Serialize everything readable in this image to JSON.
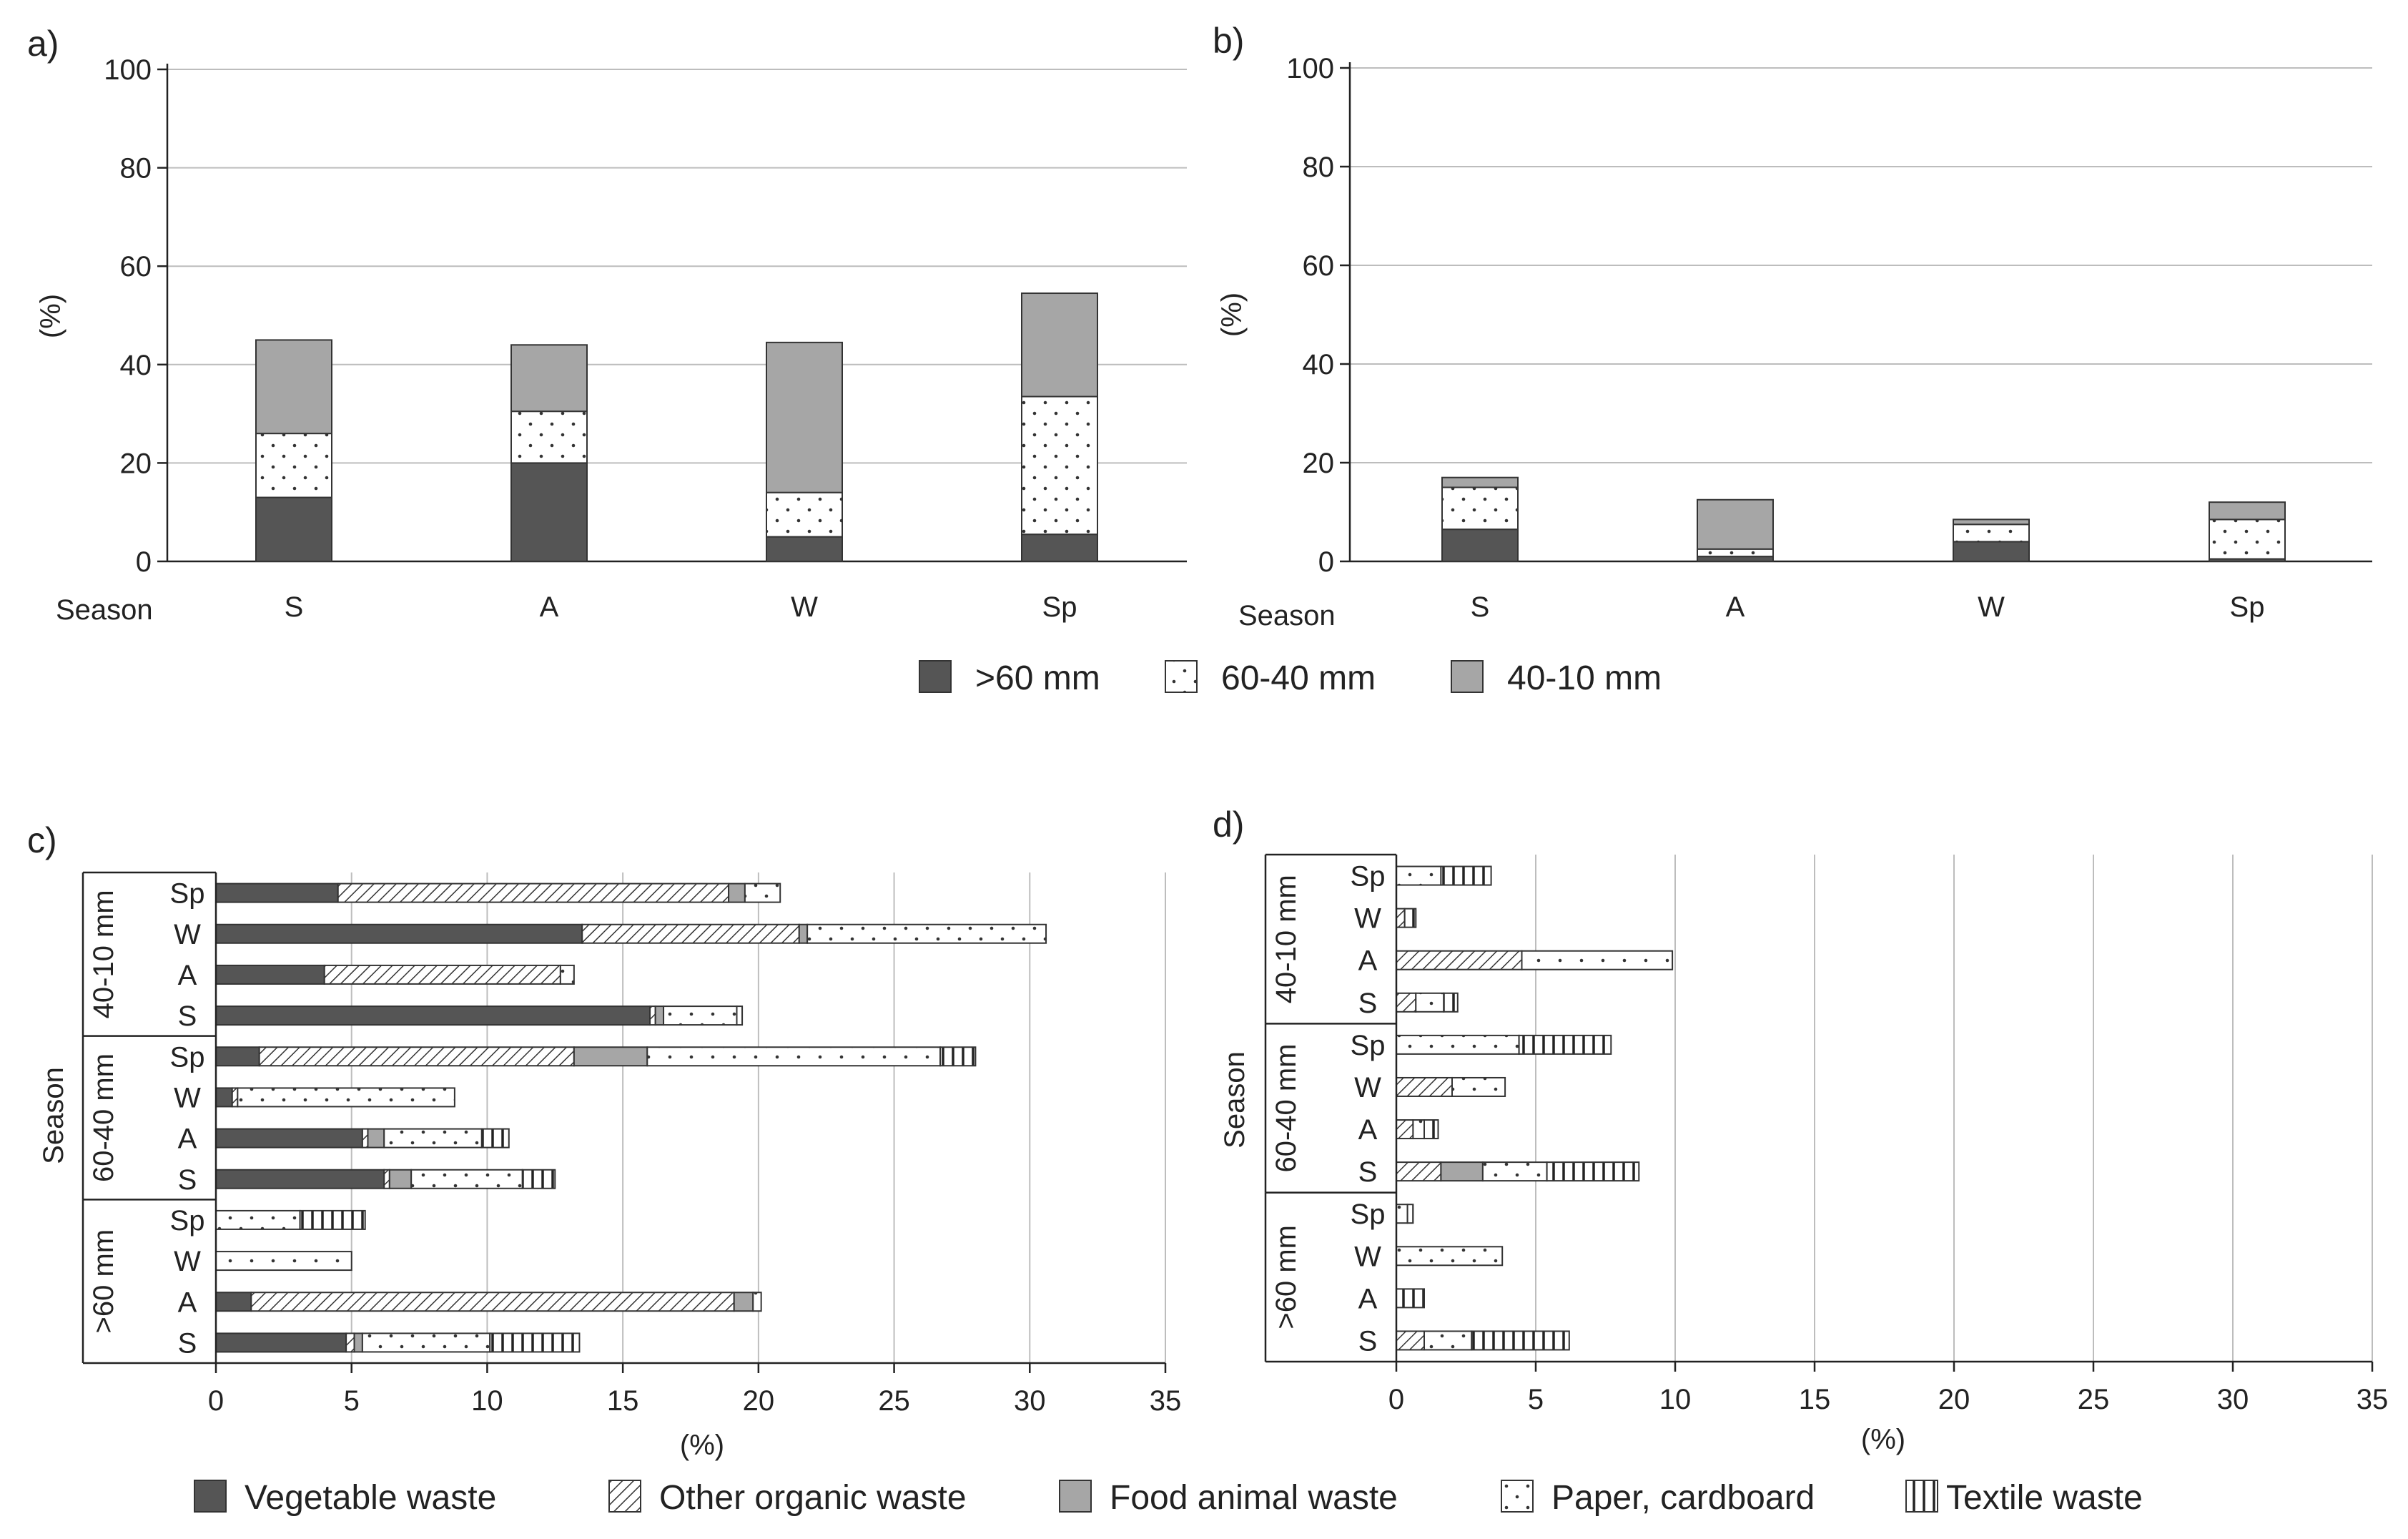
{
  "colors": {
    "vegetable": "#555555",
    "food_animal": "#a6a6a6",
    "size_gt60": "#555555",
    "size_40_10": "#a6a6a6",
    "grid": "#bdbdbd",
    "axis": "#222222"
  },
  "legend_top": [
    {
      "label": ">60 mm",
      "key": "size_gt60"
    },
    {
      "label": "60-40 mm",
      "key": "size_60_40"
    },
    {
      "label": "40-10 mm",
      "key": "size_40_10"
    }
  ],
  "legend_bottom": [
    {
      "label": "Vegetable waste",
      "key": "vegetable"
    },
    {
      "label": "Other organic waste",
      "key": "other_organic"
    },
    {
      "label": "Food animal waste",
      "key": "food_animal"
    },
    {
      "label": "Paper, cardboard",
      "key": "paper"
    },
    {
      "label": "Textile waste",
      "key": "textile"
    }
  ],
  "chart_data": [
    {
      "panel": "a)",
      "type": "bar",
      "stacked": true,
      "xlabel": "Season",
      "ylabel": "(%)",
      "ylim": [
        0,
        100
      ],
      "yticks": [
        0,
        20,
        40,
        60,
        80,
        100
      ],
      "grid": true,
      "categories": [
        "S",
        "A",
        "W",
        "Sp"
      ],
      "series": [
        {
          "name": ">60 mm",
          "key": "size_gt60",
          "values": [
            13,
            20,
            5,
            5.5
          ]
        },
        {
          "name": "60-40 mm",
          "key": "size_60_40",
          "values": [
            13,
            10.5,
            9,
            28
          ]
        },
        {
          "name": "40-10 mm",
          "key": "size_40_10",
          "values": [
            19,
            13.5,
            30.5,
            21
          ]
        }
      ]
    },
    {
      "panel": "b)",
      "type": "bar",
      "stacked": true,
      "xlabel": "Season",
      "ylabel": "(%)",
      "ylim": [
        0,
        100
      ],
      "yticks": [
        0,
        20,
        40,
        60,
        80,
        100
      ],
      "grid": true,
      "categories": [
        "S",
        "A",
        "W",
        "Sp"
      ],
      "series": [
        {
          "name": ">60 mm",
          "key": "size_gt60",
          "values": [
            6.5,
            1,
            4,
            0.5
          ]
        },
        {
          "name": "60-40 mm",
          "key": "size_60_40",
          "values": [
            8.5,
            1.5,
            3.5,
            8
          ]
        },
        {
          "name": "40-10 mm",
          "key": "size_40_10",
          "values": [
            2,
            10,
            1,
            3.5
          ]
        }
      ]
    },
    {
      "panel": "c)",
      "type": "bar",
      "orientation": "horizontal",
      "stacked": true,
      "xlabel": "(%)",
      "ylabel": "Season",
      "xlim": [
        0,
        35
      ],
      "xticks": [
        0,
        5,
        10,
        15,
        20,
        25,
        30,
        35
      ],
      "grid": true,
      "groups": [
        {
          "label": "40-10 mm",
          "rows": [
            {
              "season": "Sp",
              "values": [
                4.5,
                14.4,
                0.6,
                1.3,
                0
              ]
            },
            {
              "season": "W",
              "values": [
                13.5,
                8.0,
                0.3,
                8.8,
                0
              ]
            },
            {
              "season": "A",
              "values": [
                4.0,
                8.7,
                0,
                0.5,
                0
              ]
            },
            {
              "season": "S",
              "values": [
                16.0,
                0.2,
                0.3,
                2.7,
                0.2
              ]
            }
          ]
        },
        {
          "label": "60-40 mm",
          "rows": [
            {
              "season": "Sp",
              "values": [
                1.6,
                11.6,
                2.7,
                10.8,
                1.3
              ]
            },
            {
              "season": "W",
              "values": [
                0.6,
                0.2,
                0,
                8.0,
                0
              ]
            },
            {
              "season": "A",
              "values": [
                5.4,
                0.2,
                0.6,
                3.6,
                1.0
              ]
            },
            {
              "season": "S",
              "values": [
                6.2,
                0.2,
                0.8,
                4.1,
                1.2
              ]
            }
          ]
        },
        {
          "label": ">60 mm",
          "rows": [
            {
              "season": "Sp",
              "values": [
                0,
                0,
                0,
                3.1,
                2.4
              ]
            },
            {
              "season": "W",
              "values": [
                0,
                0,
                0,
                5.0,
                0
              ]
            },
            {
              "season": "A",
              "values": [
                1.3,
                17.8,
                0.7,
                0.3,
                0
              ]
            },
            {
              "season": "S",
              "values": [
                4.8,
                0.3,
                0.3,
                4.7,
                3.3
              ]
            }
          ]
        }
      ]
    },
    {
      "panel": "d)",
      "type": "bar",
      "orientation": "horizontal",
      "stacked": true,
      "xlabel": "(%)",
      "ylabel": "Season",
      "xlim": [
        0,
        35
      ],
      "xticks": [
        0,
        5,
        10,
        15,
        20,
        25,
        30,
        35
      ],
      "grid": true,
      "groups": [
        {
          "label": "40-10 mm",
          "rows": [
            {
              "season": "Sp",
              "values": [
                0,
                0,
                0,
                1.6,
                1.8
              ]
            },
            {
              "season": "W",
              "values": [
                0,
                0.3,
                0,
                0,
                0.4
              ]
            },
            {
              "season": "A",
              "values": [
                0,
                4.5,
                0,
                5.4,
                0
              ]
            },
            {
              "season": "S",
              "values": [
                0,
                0.7,
                0,
                1.0,
                0.5
              ]
            }
          ]
        },
        {
          "label": "60-40 mm",
          "rows": [
            {
              "season": "Sp",
              "values": [
                0,
                0,
                0,
                4.4,
                3.3
              ]
            },
            {
              "season": "W",
              "values": [
                0,
                2.0,
                0,
                1.9,
                0
              ]
            },
            {
              "season": "A",
              "values": [
                0,
                0.6,
                0,
                0.4,
                0.5
              ]
            },
            {
              "season": "S",
              "values": [
                0,
                1.6,
                1.5,
                2.3,
                3.3
              ]
            }
          ]
        },
        {
          "label": ">60 mm",
          "rows": [
            {
              "season": "Sp",
              "values": [
                0,
                0,
                0,
                0.4,
                0.2
              ]
            },
            {
              "season": "W",
              "values": [
                0,
                0,
                0,
                3.8,
                0
              ]
            },
            {
              "season": "A",
              "values": [
                0,
                0,
                0,
                0,
                1.0
              ]
            },
            {
              "season": "S",
              "values": [
                0,
                1.0,
                0,
                1.7,
                3.5
              ]
            }
          ]
        }
      ]
    }
  ]
}
